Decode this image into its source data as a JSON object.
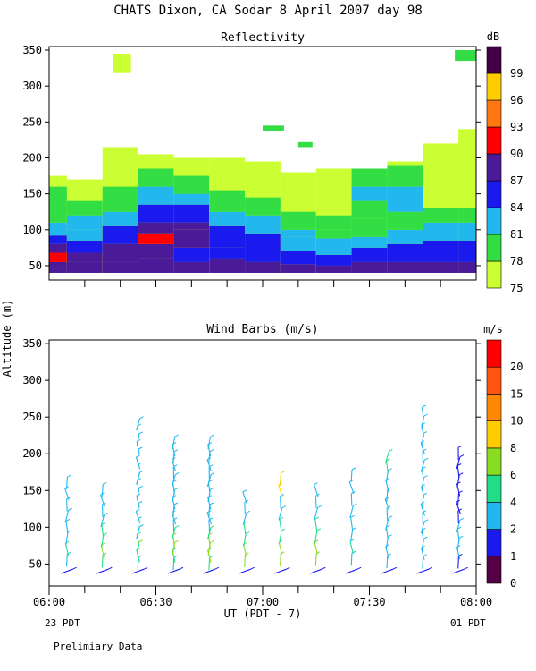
{
  "title": "CHATS Dixon, CA  Sodar   8 April 2007   day  98",
  "footer_left": "23 PDT",
  "footer_right": "01 PDT",
  "footer_note": "Prelimiary Data",
  "shared_ylabel": "Altitude (m)",
  "x_axis_label": "UT  (PDT - 7)",
  "chart_data": [
    {
      "type": "heatmap",
      "title": "Reflectivity",
      "x_ticks": [
        "06:00",
        "06:30",
        "07:00",
        "07:30",
        "08:00"
      ],
      "y_ticks": [
        "50",
        "100",
        "150",
        "200",
        "250",
        "300",
        "350"
      ],
      "xlim": [
        "06:00",
        "08:00"
      ],
      "ylim": [
        30,
        355
      ],
      "colorbar": {
        "unit": "dB",
        "levels": [
          75,
          78,
          81,
          84,
          87,
          90,
          93,
          96,
          99
        ],
        "labels": [
          "75",
          "78",
          "81",
          "84",
          "87",
          "90",
          "93",
          "96",
          "99"
        ],
        "colors": [
          "#ccff33",
          "#33dd44",
          "#22b8ee",
          "#1a1aee",
          "#4b1a99",
          "#ff0000",
          "#ff7711",
          "#ffcc00",
          "#440044"
        ]
      },
      "columns": [
        {
          "time": "06:00",
          "top": 175,
          "bands": [
            [
              40,
              45,
              87
            ],
            [
              45,
              55,
              87
            ],
            [
              55,
              68,
              90
            ],
            [
              68,
              80,
              87
            ],
            [
              80,
              92,
              84
            ],
            [
              92,
              110,
              81
            ],
            [
              110,
              130,
              78
            ],
            [
              130,
              160,
              78
            ]
          ]
        },
        {
          "time": "06:10",
          "top": 170,
          "bands": [
            [
              40,
              55,
              87
            ],
            [
              55,
              68,
              87
            ],
            [
              68,
              85,
              84
            ],
            [
              85,
              100,
              81
            ],
            [
              100,
              120,
              81
            ],
            [
              120,
              140,
              78
            ]
          ]
        },
        {
          "time": "06:20",
          "top": 215,
          "bands": [
            [
              40,
              55,
              87
            ],
            [
              55,
              80,
              87
            ],
            [
              80,
              105,
              84
            ],
            [
              105,
              125,
              81
            ],
            [
              125,
              160,
              78
            ]
          ]
        },
        {
          "time": "06:30",
          "top": 205,
          "bands": [
            [
              40,
              60,
              87
            ],
            [
              60,
              80,
              87
            ],
            [
              80,
              95,
              90
            ],
            [
              95,
              110,
              87
            ],
            [
              110,
              135,
              84
            ],
            [
              135,
              160,
              81
            ],
            [
              160,
              185,
              78
            ]
          ]
        },
        {
          "time": "06:40",
          "top": 200,
          "bands": [
            [
              40,
              55,
              87
            ],
            [
              55,
              75,
              84
            ],
            [
              75,
              100,
              87
            ],
            [
              100,
              110,
              87
            ],
            [
              110,
              135,
              84
            ],
            [
              135,
              150,
              81
            ],
            [
              150,
              175,
              78
            ]
          ]
        },
        {
          "time": "06:50",
          "top": 200,
          "bands": [
            [
              40,
              60,
              87
            ],
            [
              60,
              75,
              84
            ],
            [
              75,
              105,
              84
            ],
            [
              105,
              125,
              81
            ],
            [
              125,
              155,
              78
            ]
          ]
        },
        {
          "time": "07:00",
          "top": 195,
          "bands": [
            [
              40,
              55,
              87
            ],
            [
              55,
              70,
              84
            ],
            [
              70,
              95,
              84
            ],
            [
              95,
              120,
              81
            ],
            [
              120,
              145,
              78
            ]
          ]
        },
        {
          "time": "07:10",
          "top": 180,
          "bands": [
            [
              40,
              52,
              87
            ],
            [
              52,
              70,
              84
            ],
            [
              70,
              90,
              81
            ],
            [
              90,
              100,
              81
            ],
            [
              100,
              125,
              78
            ]
          ]
        },
        {
          "time": "07:20",
          "top": 185,
          "bands": [
            [
              40,
              50,
              87
            ],
            [
              50,
              65,
              84
            ],
            [
              65,
              88,
              81
            ],
            [
              88,
              100,
              78
            ],
            [
              100,
              120,
              78
            ]
          ]
        },
        {
          "time": "07:30",
          "top": 185,
          "bands": [
            [
              40,
              55,
              87
            ],
            [
              55,
              75,
              84
            ],
            [
              75,
              90,
              81
            ],
            [
              90,
              115,
              78
            ],
            [
              115,
              140,
              78
            ],
            [
              140,
              160,
              81
            ],
            [
              160,
              185,
              78
            ]
          ]
        },
        {
          "time": "07:40",
          "top": 195,
          "bands": [
            [
              40,
              55,
              87
            ],
            [
              55,
              80,
              84
            ],
            [
              80,
              100,
              81
            ],
            [
              100,
              125,
              78
            ],
            [
              125,
              160,
              81
            ],
            [
              160,
              190,
              78
            ]
          ]
        },
        {
          "time": "07:50",
          "top": 220,
          "bands": [
            [
              40,
              55,
              87
            ],
            [
              55,
              85,
              84
            ],
            [
              85,
              110,
              81
            ],
            [
              110,
              130,
              78
            ]
          ]
        },
        {
          "time": "08:00",
          "top": 240,
          "bands": [
            [
              40,
              55,
              87
            ],
            [
              55,
              85,
              84
            ],
            [
              85,
              110,
              81
            ],
            [
              110,
              130,
              78
            ]
          ]
        }
      ],
      "patches": [
        {
          "time_from": "06:18",
          "time_to": "06:23",
          "alt_from": 318,
          "alt_to": 345,
          "level": 75
        },
        {
          "time_from": "07:00",
          "time_to": "07:06",
          "alt_from": 238,
          "alt_to": 245,
          "level": 78
        },
        {
          "time_from": "07:10",
          "time_to": "07:14",
          "alt_from": 215,
          "alt_to": 222,
          "level": 78
        },
        {
          "time_from": "07:54",
          "time_to": "08:00",
          "alt_from": 335,
          "alt_to": 350,
          "level": 78
        }
      ]
    },
    {
      "type": "wind_barbs",
      "title": "Wind Barbs (m/s)",
      "x_ticks": [
        "06:00",
        "06:30",
        "07:00",
        "07:30",
        "08:00"
      ],
      "y_ticks": [
        "50",
        "100",
        "150",
        "200",
        "250",
        "300",
        "350"
      ],
      "xlim": [
        "06:00",
        "08:00"
      ],
      "ylim": [
        20,
        355
      ],
      "colorbar": {
        "unit": "m/s",
        "levels": [
          0,
          1,
          2,
          4,
          6,
          8,
          10,
          15,
          20
        ],
        "labels": [
          "0",
          "1",
          "2",
          "4",
          "6",
          "8",
          "10",
          "15",
          "20"
        ],
        "colors": [
          "#550044",
          "#1a1aee",
          "#22b8ee",
          "#22dd88",
          "#88dd22",
          "#ffcc00",
          "#ff8800",
          "#ff5511",
          "#ff0000"
        ]
      },
      "profiles": [
        {
          "time": "06:05",
          "top": 160,
          "speeds": [
            1,
            3,
            4,
            3,
            2,
            2,
            2,
            2,
            2
          ]
        },
        {
          "time": "06:15",
          "top": 150,
          "speeds": [
            1,
            5,
            6,
            5,
            4,
            3,
            2,
            2,
            2
          ]
        },
        {
          "time": "06:25",
          "top": 240,
          "speeds": [
            1,
            3,
            5,
            6,
            5,
            3,
            2,
            2,
            2,
            2,
            2,
            2,
            2,
            2,
            2,
            2,
            2,
            2,
            2,
            2
          ]
        },
        {
          "time": "06:35",
          "top": 215,
          "speeds": [
            1,
            3,
            5,
            6,
            6,
            5,
            3,
            2,
            2,
            2,
            2,
            2,
            2,
            2,
            2,
            2,
            2,
            2
          ]
        },
        {
          "time": "06:45",
          "top": 215,
          "speeds": [
            1,
            5,
            6,
            6,
            6,
            5,
            3,
            2,
            2,
            2,
            2,
            2,
            2,
            2,
            2,
            2,
            2,
            2
          ]
        },
        {
          "time": "06:55",
          "top": 140,
          "speeds": [
            1,
            6,
            6,
            5,
            4,
            3,
            2,
            2
          ]
        },
        {
          "time": "07:05",
          "top": 165,
          "speeds": [
            1,
            6,
            6,
            5,
            4,
            3,
            2,
            8,
            8
          ]
        },
        {
          "time": "07:15",
          "top": 150,
          "speeds": [
            1,
            6,
            6,
            5,
            4,
            2,
            2,
            2
          ]
        },
        {
          "time": "07:25",
          "top": 170,
          "speeds": [
            1,
            3,
            4,
            3,
            2,
            2,
            2,
            2,
            2
          ]
        },
        {
          "time": "07:35",
          "top": 195,
          "speeds": [
            1,
            2,
            3,
            3,
            2,
            2,
            2,
            2,
            2,
            2,
            2,
            4,
            4
          ]
        },
        {
          "time": "07:45",
          "top": 255,
          "speeds": [
            1,
            2,
            3,
            3,
            2,
            2,
            2,
            2,
            2,
            2,
            2,
            2,
            2,
            2,
            2,
            2,
            2,
            2,
            2
          ]
        },
        {
          "time": "07:55",
          "top": 200,
          "speeds": [
            1,
            1,
            2,
            2,
            2,
            2,
            1,
            1,
            1,
            1,
            1,
            1,
            1,
            1
          ]
        }
      ]
    }
  ]
}
